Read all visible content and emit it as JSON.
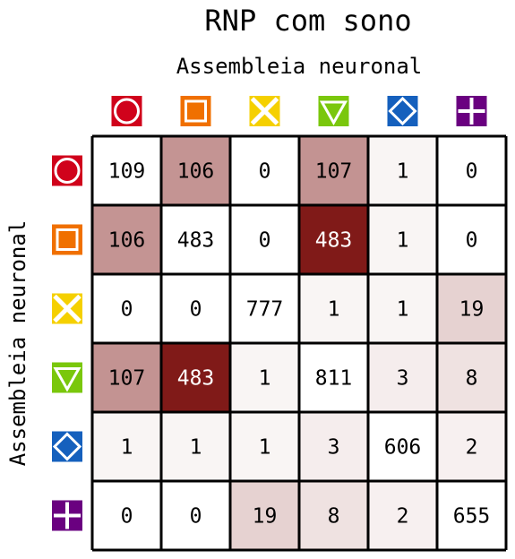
{
  "chart_data": {
    "type": "heatmap",
    "title": "RNP com sono",
    "xlabel": "Assembleia neuronal",
    "ylabel": "Assembleia neuronal",
    "row_symbols": [
      "circle",
      "square",
      "x-cross",
      "triangle-down",
      "diamond",
      "plus"
    ],
    "column_symbols": [
      "circle",
      "square",
      "x-cross",
      "triangle-down",
      "diamond",
      "plus"
    ],
    "symbol_colors": [
      "#d0021b",
      "#f07000",
      "#f5d000",
      "#7ac70c",
      "#1560bd",
      "#6a0080"
    ],
    "values": [
      [
        109,
        106,
        0,
        107,
        1,
        0
      ],
      [
        106,
        483,
        0,
        483,
        1,
        0
      ],
      [
        0,
        0,
        777,
        1,
        1,
        19
      ],
      [
        107,
        483,
        1,
        811,
        3,
        8
      ],
      [
        1,
        1,
        1,
        3,
        606,
        2
      ],
      [
        0,
        0,
        19,
        8,
        2,
        655
      ]
    ],
    "diagonal_shaded": false,
    "color_high": "#801a18",
    "color_low": "#ffffff",
    "grid": true
  }
}
